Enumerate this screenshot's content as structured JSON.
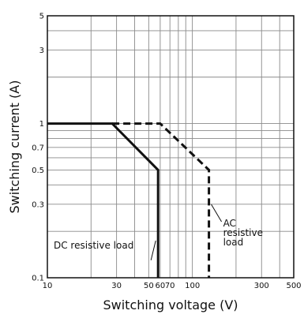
{
  "chart_data": {
    "type": "line",
    "xlabel": "Switching voltage (V)",
    "ylabel": "Switching current (A)",
    "x_scale": "log",
    "y_scale": "log",
    "xlim": [
      10,
      500
    ],
    "ylim": [
      0.1,
      5
    ],
    "grid": true,
    "x_ticks": [
      {
        "value": 10,
        "label": "10"
      },
      {
        "value": 30,
        "label": "30"
      },
      {
        "value": 50,
        "label": "50"
      },
      {
        "value": 60,
        "label": "60"
      },
      {
        "value": 70,
        "label": "70"
      },
      {
        "value": 100,
        "label": "100"
      },
      {
        "value": 300,
        "label": "300"
      },
      {
        "value": 500,
        "label": "500"
      }
    ],
    "y_ticks": [
      {
        "value": 0.1,
        "label": "0.1"
      },
      {
        "value": 0.3,
        "label": "0.3"
      },
      {
        "value": 0.5,
        "label": "0.5"
      },
      {
        "value": 0.7,
        "label": "0.7"
      },
      {
        "value": 1,
        "label": "1"
      },
      {
        "value": 3,
        "label": "3"
      },
      {
        "value": 5,
        "label": "5"
      }
    ],
    "series": [
      {
        "name": "DC resistive load",
        "style": "solid",
        "x": [
          10,
          28,
          58,
          58
        ],
        "y": [
          1,
          1,
          0.5,
          0.1
        ]
      },
      {
        "name": "AC resistive load",
        "style": "dashed",
        "x": [
          28,
          60,
          130,
          130
        ],
        "y": [
          1,
          1,
          0.5,
          0.1
        ]
      }
    ],
    "annotations": {
      "dc_label": "DC resistive load",
      "ac_label_lines": [
        "AC",
        "resistive",
        "load"
      ]
    },
    "colors": {
      "line": "#111111",
      "grid": "#8a8a8a",
      "frame": "#111111"
    }
  }
}
